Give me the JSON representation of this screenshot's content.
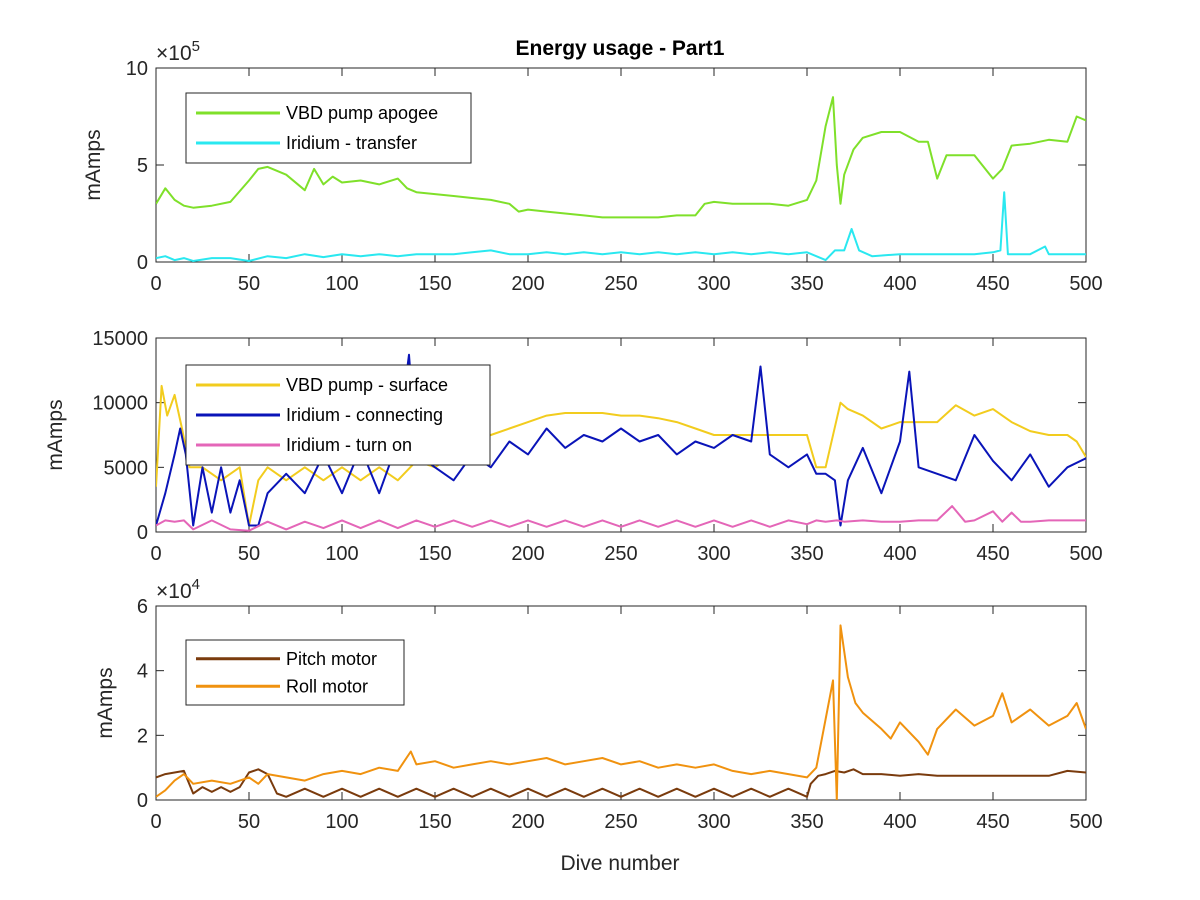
{
  "figure": {
    "title": "Energy usage - Part1",
    "xlabel": "Dive number"
  },
  "chart_data": [
    {
      "type": "line",
      "title": "Energy usage - Part1",
      "xlabel": "",
      "ylabel": "mAmps",
      "xlim": [
        0,
        500
      ],
      "ylim": [
        0,
        1000000
      ],
      "xticks": [
        0,
        50,
        100,
        150,
        200,
        250,
        300,
        350,
        400,
        450,
        500
      ],
      "yticks": [
        0,
        5,
        10
      ],
      "y_exponent_label": "×10",
      "y_exponent": "5",
      "legend_position": "top-left",
      "series": [
        {
          "name": "VBD pump apogee",
          "color": "#7FE02A",
          "x": [
            0,
            5,
            10,
            15,
            20,
            30,
            40,
            50,
            55,
            60,
            70,
            80,
            85,
            90,
            95,
            100,
            110,
            120,
            130,
            135,
            140,
            150,
            160,
            170,
            180,
            190,
            195,
            200,
            210,
            220,
            230,
            240,
            250,
            260,
            270,
            280,
            290,
            295,
            300,
            310,
            320,
            330,
            340,
            350,
            355,
            360,
            364,
            366,
            368,
            370,
            375,
            380,
            390,
            400,
            410,
            415,
            420,
            425,
            430,
            440,
            450,
            455,
            460,
            470,
            480,
            490,
            495,
            500
          ],
          "y": [
            300000,
            380000,
            320000,
            290000,
            280000,
            290000,
            310000,
            420000,
            480000,
            490000,
            450000,
            370000,
            480000,
            400000,
            440000,
            410000,
            420000,
            400000,
            430000,
            380000,
            360000,
            350000,
            340000,
            330000,
            320000,
            300000,
            260000,
            270000,
            260000,
            250000,
            240000,
            230000,
            230000,
            230000,
            230000,
            240000,
            240000,
            300000,
            310000,
            300000,
            300000,
            300000,
            290000,
            320000,
            420000,
            700000,
            850000,
            500000,
            300000,
            450000,
            580000,
            640000,
            670000,
            670000,
            620000,
            620000,
            430000,
            550000,
            550000,
            550000,
            430000,
            480000,
            600000,
            610000,
            630000,
            620000,
            750000,
            730000
          ]
        },
        {
          "name": "Iridium - transfer",
          "color": "#2AE8F0",
          "x": [
            0,
            5,
            10,
            15,
            20,
            30,
            40,
            50,
            60,
            70,
            80,
            90,
            100,
            110,
            120,
            130,
            140,
            150,
            160,
            170,
            180,
            190,
            200,
            210,
            220,
            230,
            240,
            250,
            260,
            270,
            280,
            290,
            300,
            310,
            320,
            330,
            340,
            350,
            360,
            365,
            370,
            374,
            378,
            385,
            400,
            420,
            440,
            450,
            454,
            456,
            458,
            470,
            478,
            480,
            490,
            500
          ],
          "y": [
            20000,
            30000,
            10000,
            20000,
            5000,
            20000,
            20000,
            5000,
            30000,
            20000,
            40000,
            25000,
            40000,
            30000,
            40000,
            30000,
            40000,
            40000,
            40000,
            50000,
            60000,
            40000,
            40000,
            50000,
            40000,
            50000,
            40000,
            50000,
            40000,
            50000,
            40000,
            50000,
            40000,
            50000,
            40000,
            50000,
            40000,
            50000,
            10000,
            60000,
            60000,
            170000,
            60000,
            30000,
            40000,
            40000,
            40000,
            50000,
            60000,
            360000,
            40000,
            40000,
            80000,
            40000,
            40000,
            40000
          ]
        }
      ]
    },
    {
      "type": "line",
      "title": "",
      "xlabel": "",
      "ylabel": "mAmps",
      "xlim": [
        0,
        500
      ],
      "ylim": [
        0,
        15000
      ],
      "xticks": [
        0,
        50,
        100,
        150,
        200,
        250,
        300,
        350,
        400,
        450,
        500
      ],
      "yticks": [
        0,
        5000,
        10000,
        15000
      ],
      "legend_position": "top-left",
      "series": [
        {
          "name": "VBD pump - surface",
          "color": "#F2CC1E",
          "x": [
            0,
            3,
            6,
            10,
            14,
            18,
            25,
            35,
            45,
            50,
            55,
            60,
            70,
            80,
            90,
            100,
            110,
            120,
            130,
            140,
            150,
            160,
            170,
            180,
            190,
            200,
            210,
            220,
            230,
            240,
            250,
            260,
            270,
            280,
            290,
            300,
            310,
            320,
            330,
            340,
            350,
            355,
            360,
            368,
            372,
            380,
            390,
            400,
            410,
            420,
            430,
            440,
            450,
            460,
            470,
            480,
            490,
            495,
            500
          ],
          "y": [
            3500,
            11300,
            9000,
            10600,
            8000,
            5000,
            5000,
            4000,
            5000,
            500,
            4000,
            5000,
            4000,
            5000,
            4000,
            5000,
            4000,
            5000,
            4000,
            5500,
            5000,
            6000,
            7000,
            7500,
            8000,
            8500,
            9000,
            9200,
            9200,
            9200,
            9000,
            9000,
            8800,
            8500,
            8000,
            7500,
            7500,
            7500,
            7500,
            7500,
            7500,
            5000,
            5000,
            10000,
            9500,
            9000,
            8000,
            8500,
            8500,
            8500,
            9800,
            9000,
            9500,
            8500,
            7800,
            7500,
            7500,
            7000,
            5800
          ]
        },
        {
          "name": "Iridium - connecting",
          "color": "#0A14B8",
          "x": [
            0,
            5,
            10,
            13,
            16,
            20,
            25,
            30,
            35,
            40,
            45,
            50,
            55,
            60,
            70,
            80,
            90,
            100,
            110,
            120,
            130,
            136,
            140,
            150,
            160,
            170,
            180,
            190,
            200,
            210,
            220,
            230,
            240,
            250,
            260,
            270,
            280,
            290,
            300,
            310,
            320,
            325,
            330,
            340,
            350,
            355,
            360,
            365,
            368,
            372,
            380,
            390,
            400,
            405,
            410,
            420,
            430,
            440,
            450,
            460,
            470,
            480,
            490,
            500
          ],
          "y": [
            500,
            3000,
            6000,
            8000,
            6000,
            500,
            5000,
            1500,
            5000,
            1500,
            4000,
            500,
            500,
            3000,
            4500,
            3000,
            6000,
            3000,
            6500,
            3000,
            7000,
            13700,
            6000,
            5000,
            4000,
            6000,
            5000,
            7000,
            6000,
            8000,
            6500,
            7500,
            7000,
            8000,
            7000,
            7500,
            6000,
            7000,
            6500,
            7500,
            7000,
            12800,
            6000,
            5000,
            6000,
            4500,
            4500,
            4000,
            500,
            4000,
            6500,
            3000,
            7000,
            12400,
            5000,
            4500,
            4000,
            7500,
            5500,
            4000,
            6000,
            3500,
            5000,
            5700
          ]
        },
        {
          "name": "Iridium - turn on",
          "color": "#E466B8",
          "x": [
            0,
            5,
            10,
            15,
            20,
            30,
            40,
            50,
            60,
            70,
            80,
            90,
            100,
            110,
            120,
            130,
            140,
            150,
            160,
            170,
            180,
            190,
            200,
            210,
            220,
            230,
            240,
            250,
            260,
            270,
            280,
            290,
            300,
            310,
            320,
            330,
            340,
            350,
            355,
            360,
            366,
            370,
            380,
            390,
            400,
            410,
            420,
            428,
            435,
            440,
            450,
            455,
            460,
            465,
            470,
            480,
            490,
            500
          ],
          "y": [
            500,
            900,
            800,
            900,
            200,
            900,
            200,
            100,
            800,
            200,
            800,
            300,
            900,
            300,
            900,
            300,
            900,
            400,
            900,
            400,
            900,
            400,
            900,
            400,
            900,
            400,
            900,
            400,
            900,
            400,
            900,
            400,
            900,
            400,
            900,
            400,
            900,
            600,
            900,
            800,
            900,
            800,
            900,
            800,
            800,
            900,
            900,
            2000,
            800,
            900,
            1600,
            800,
            1500,
            800,
            800,
            900,
            900,
            900
          ]
        }
      ]
    },
    {
      "type": "line",
      "title": "",
      "xlabel": "Dive number",
      "ylabel": "mAmps",
      "xlim": [
        0,
        500
      ],
      "ylim": [
        0,
        60000
      ],
      "xticks": [
        0,
        50,
        100,
        150,
        200,
        250,
        300,
        350,
        400,
        450,
        500
      ],
      "yticks": [
        0,
        2,
        4,
        6
      ],
      "y_exponent_label": "×10",
      "y_exponent": "4",
      "legend_position": "top-left",
      "series": [
        {
          "name": "Pitch motor",
          "color": "#7A3B0D",
          "x": [
            0,
            5,
            10,
            15,
            20,
            25,
            30,
            35,
            40,
            45,
            50,
            55,
            60,
            65,
            70,
            80,
            90,
            100,
            110,
            120,
            130,
            140,
            150,
            160,
            170,
            180,
            190,
            200,
            210,
            220,
            230,
            240,
            250,
            260,
            270,
            280,
            290,
            300,
            310,
            320,
            330,
            340,
            350,
            352,
            356,
            360,
            365,
            370,
            375,
            380,
            390,
            400,
            410,
            420,
            430,
            440,
            450,
            460,
            470,
            480,
            490,
            500
          ],
          "y": [
            7000,
            8000,
            8500,
            9000,
            2000,
            4000,
            2500,
            4000,
            2500,
            4000,
            8500,
            9500,
            8000,
            2000,
            1000,
            3500,
            1000,
            3500,
            1000,
            3500,
            1000,
            3500,
            1000,
            3500,
            1000,
            3500,
            1000,
            3500,
            1000,
            3500,
            1000,
            3500,
            1000,
            3500,
            1000,
            3500,
            1000,
            3500,
            1000,
            3500,
            1000,
            3500,
            1000,
            5000,
            7500,
            8000,
            9000,
            8500,
            9500,
            8000,
            8000,
            7500,
            8000,
            7500,
            7500,
            7500,
            7500,
            7500,
            7500,
            7500,
            9000,
            8500
          ]
        },
        {
          "name": "Roll motor",
          "color": "#F0920F",
          "x": [
            0,
            5,
            10,
            15,
            20,
            30,
            40,
            50,
            55,
            60,
            70,
            80,
            90,
            100,
            110,
            120,
            130,
            137,
            140,
            150,
            160,
            170,
            180,
            190,
            200,
            210,
            220,
            230,
            240,
            250,
            260,
            270,
            280,
            290,
            300,
            310,
            320,
            330,
            340,
            350,
            355,
            360,
            364,
            366,
            368,
            372,
            376,
            380,
            390,
            395,
            400,
            410,
            415,
            420,
            430,
            440,
            450,
            455,
            460,
            470,
            480,
            490,
            495,
            500
          ],
          "y": [
            1000,
            3000,
            6000,
            8000,
            5000,
            6000,
            5000,
            7000,
            5000,
            8000,
            7000,
            6000,
            8000,
            9000,
            8000,
            10000,
            9000,
            15000,
            11000,
            12000,
            10000,
            11000,
            12000,
            11000,
            12000,
            13000,
            11000,
            12000,
            13000,
            11000,
            12000,
            10000,
            11000,
            10000,
            11000,
            9000,
            8000,
            9000,
            8000,
            7000,
            10000,
            25000,
            37000,
            0,
            54000,
            38000,
            30000,
            27000,
            22000,
            19000,
            24000,
            18000,
            14000,
            22000,
            28000,
            23000,
            26000,
            33000,
            24000,
            28000,
            23000,
            26000,
            30000,
            22000
          ]
        }
      ]
    }
  ]
}
